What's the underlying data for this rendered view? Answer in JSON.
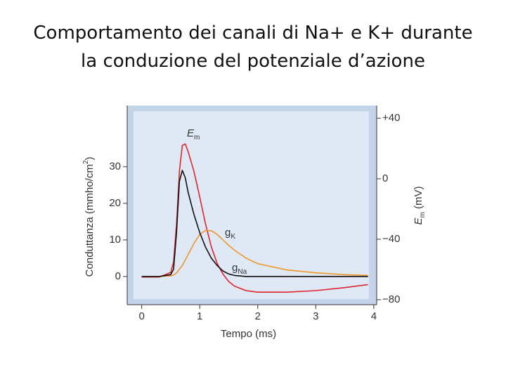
{
  "title_lines": [
    "Comportamento dei canali di Na+ e K+ durante",
    "la conduzione del potenziale d’azione"
  ],
  "chart_data": {
    "type": "line",
    "x_label": "Tempo (ms)",
    "y_label_parts": [
      {
        "text": "Conduttanza (mmho/cm"
      },
      {
        "text": "2",
        "sup": true
      },
      {
        "text": ")"
      }
    ],
    "y2_label_parts": [
      {
        "text": "E",
        "italic": true
      },
      {
        "text": "m",
        "sub": true
      },
      {
        "text": " (mV)"
      }
    ],
    "x": [
      0,
      0.3,
      0.5,
      0.55,
      0.6,
      0.65,
      0.7,
      0.75,
      0.8,
      0.9,
      1.0,
      1.1,
      1.2,
      1.3,
      1.4,
      1.5,
      1.6,
      1.8,
      2.0,
      2.5,
      3.0,
      3.5,
      3.9
    ],
    "series": [
      {
        "label_main": "E",
        "label_sub": "m",
        "italic": true,
        "color": "#e0242b",
        "axis": "y2",
        "values": [
          -65,
          -65,
          -62,
          -55,
          -30,
          5,
          22,
          23,
          18,
          5,
          -12,
          -30,
          -45,
          -56,
          -63,
          -68,
          -71,
          -74,
          -75,
          -75,
          -74,
          -72,
          -70
        ]
      },
      {
        "label_main": "g",
        "label_sub": "K",
        "italic": false,
        "color": "#f0962a",
        "axis": "y",
        "values": [
          0,
          0,
          0.2,
          0.4,
          1,
          2,
          3,
          4.5,
          6,
          9,
          11.5,
          12.6,
          12.5,
          11.5,
          10,
          8.5,
          7.2,
          5,
          3.5,
          1.8,
          1,
          0.5,
          0.3
        ]
      },
      {
        "label_main": "g",
        "label_sub": "Na",
        "italic": false,
        "color": "#111111",
        "axis": "y",
        "values": [
          0,
          0,
          0.5,
          2,
          12,
          26,
          29,
          27,
          23,
          17,
          12,
          8,
          5,
          3,
          1.5,
          0.7,
          0.3,
          0,
          0,
          0,
          0,
          0,
          0
        ]
      }
    ],
    "xlim": [
      -0.25,
      4.05
    ],
    "xticks": [
      0,
      1,
      2,
      3,
      4
    ],
    "ylim": [
      -7.7,
      46.7
    ],
    "yticks": [
      0,
      10,
      20,
      30
    ],
    "y2lim": [
      -83.3,
      48.4
    ],
    "y2ticks": [
      {
        "value": 40,
        "label": "+40"
      },
      0,
      {
        "value": -40,
        "label": "−40"
      },
      {
        "value": -80,
        "label": "−80"
      }
    ]
  }
}
